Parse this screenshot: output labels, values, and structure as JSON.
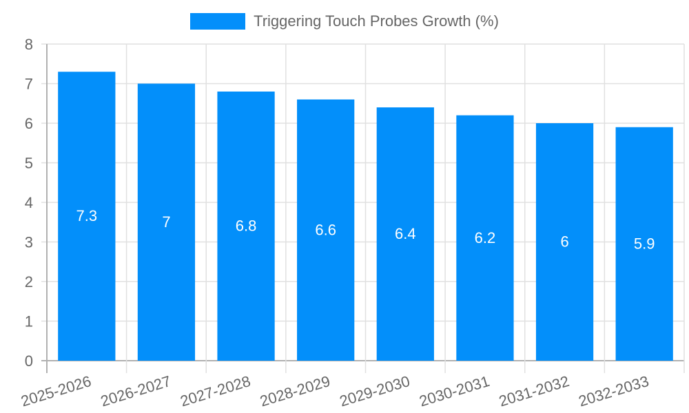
{
  "chart_data": {
    "type": "bar",
    "title": "",
    "legend": [
      {
        "label": "Triggering Touch Probes Growth (%)",
        "color": "#038ffa"
      }
    ],
    "legend_position": "top",
    "categories": [
      "2025-2026",
      "2026-2027",
      "2027-2028",
      "2028-2029",
      "2029-2030",
      "2030-2031",
      "2031-2032",
      "2032-2033"
    ],
    "series": [
      {
        "name": "Triggering Touch Probes Growth (%)",
        "values": [
          7.3,
          7,
          6.8,
          6.6,
          6.4,
          6.2,
          6,
          5.9
        ],
        "color": "#038ffa"
      }
    ],
    "data_labels": [
      "7.3",
      "7",
      "6.8",
      "6.6",
      "6.4",
      "6.2",
      "6",
      "5.9"
    ],
    "xlabel": "",
    "ylabel": "",
    "ylim": [
      0,
      8
    ],
    "yticks": [
      0,
      1,
      2,
      3,
      4,
      5,
      6,
      7,
      8
    ],
    "grid": true
  }
}
